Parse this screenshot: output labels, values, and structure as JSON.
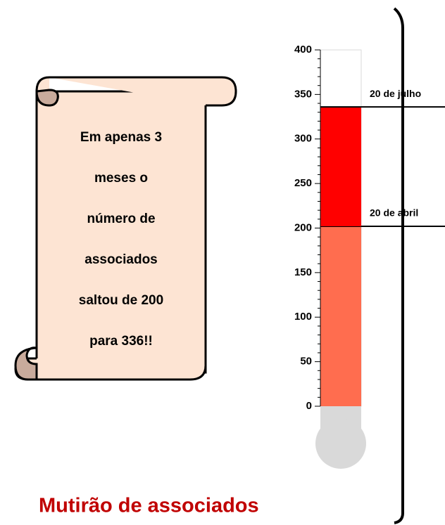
{
  "chart_data": {
    "type": "thermometer",
    "title": "Mutirão de associados",
    "note_lines": [
      "Em apenas 3",
      "meses o",
      "número de",
      "associados",
      "saltou de 200",
      "para 336!!"
    ],
    "series": [
      {
        "name": "20 de abril",
        "color": "#ff6d4f",
        "values": [
          202
        ]
      },
      {
        "name": "20 de julho",
        "color": "#ff0000",
        "values": [
          134
        ]
      }
    ],
    "ylim": [
      0,
      400
    ],
    "yticks": [
      0,
      50,
      100,
      150,
      200,
      250,
      300,
      350,
      400
    ]
  }
}
